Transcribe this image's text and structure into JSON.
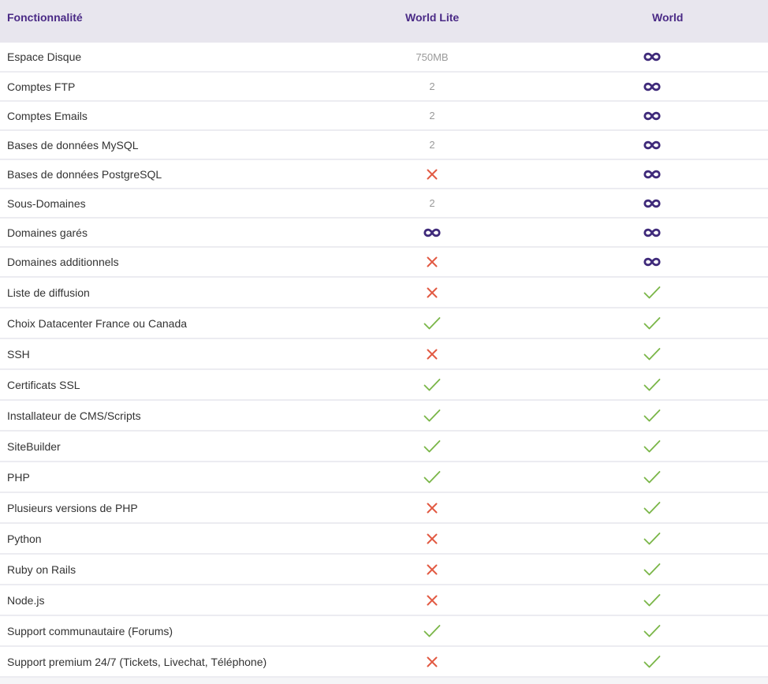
{
  "colors": {
    "header_bg": "#e8e6ee",
    "header_text": "#4a2a86",
    "infinity": "#3f2a7a",
    "check": "#7ab648",
    "cross": "#e25a43",
    "number_text": "#9a9a9a"
  },
  "header": {
    "feature": "Fonctionnalité",
    "lite": "World Lite",
    "world": "World"
  },
  "rows": [
    {
      "feature": "Espace Disque",
      "lite": {
        "type": "text",
        "text": "750MB"
      },
      "world": {
        "type": "icon",
        "icon": "infinity-icon"
      }
    },
    {
      "feature": "Comptes FTP",
      "lite": {
        "type": "text",
        "text": "2"
      },
      "world": {
        "type": "icon",
        "icon": "infinity-icon"
      }
    },
    {
      "feature": "Comptes Emails",
      "lite": {
        "type": "text",
        "text": "2"
      },
      "world": {
        "type": "icon",
        "icon": "infinity-icon"
      }
    },
    {
      "feature": "Bases de données MySQL",
      "lite": {
        "type": "text",
        "text": "2"
      },
      "world": {
        "type": "icon",
        "icon": "infinity-icon"
      }
    },
    {
      "feature": "Bases de données PostgreSQL",
      "lite": {
        "type": "icon",
        "icon": "cross-icon"
      },
      "world": {
        "type": "icon",
        "icon": "infinity-icon"
      }
    },
    {
      "feature": "Sous-Domaines",
      "lite": {
        "type": "text",
        "text": "2"
      },
      "world": {
        "type": "icon",
        "icon": "infinity-icon"
      }
    },
    {
      "feature": "Domaines garés",
      "lite": {
        "type": "icon",
        "icon": "infinity-icon"
      },
      "world": {
        "type": "icon",
        "icon": "infinity-icon"
      }
    },
    {
      "feature": "Domaines additionnels",
      "lite": {
        "type": "icon",
        "icon": "cross-icon"
      },
      "world": {
        "type": "icon",
        "icon": "infinity-icon"
      }
    },
    {
      "feature": "Liste de diffusion",
      "lite": {
        "type": "icon",
        "icon": "cross-icon"
      },
      "world": {
        "type": "icon",
        "icon": "check-icon"
      }
    },
    {
      "feature": "Choix Datacenter France ou Canada",
      "lite": {
        "type": "icon",
        "icon": "check-icon"
      },
      "world": {
        "type": "icon",
        "icon": "check-icon"
      }
    },
    {
      "feature": "SSH",
      "lite": {
        "type": "icon",
        "icon": "cross-icon"
      },
      "world": {
        "type": "icon",
        "icon": "check-icon"
      }
    },
    {
      "feature": "Certificats SSL",
      "lite": {
        "type": "icon",
        "icon": "check-icon"
      },
      "world": {
        "type": "icon",
        "icon": "check-icon"
      }
    },
    {
      "feature": "Installateur de CMS/Scripts",
      "lite": {
        "type": "icon",
        "icon": "check-icon"
      },
      "world": {
        "type": "icon",
        "icon": "check-icon"
      }
    },
    {
      "feature": "SiteBuilder",
      "lite": {
        "type": "icon",
        "icon": "check-icon"
      },
      "world": {
        "type": "icon",
        "icon": "check-icon"
      }
    },
    {
      "feature": "PHP",
      "lite": {
        "type": "icon",
        "icon": "check-icon"
      },
      "world": {
        "type": "icon",
        "icon": "check-icon"
      }
    },
    {
      "feature": "Plusieurs versions de PHP",
      "lite": {
        "type": "icon",
        "icon": "cross-icon"
      },
      "world": {
        "type": "icon",
        "icon": "check-icon"
      }
    },
    {
      "feature": "Python",
      "lite": {
        "type": "icon",
        "icon": "cross-icon"
      },
      "world": {
        "type": "icon",
        "icon": "check-icon"
      }
    },
    {
      "feature": "Ruby on Rails",
      "lite": {
        "type": "icon",
        "icon": "cross-icon"
      },
      "world": {
        "type": "icon",
        "icon": "check-icon"
      }
    },
    {
      "feature": "Node.js",
      "lite": {
        "type": "icon",
        "icon": "cross-icon"
      },
      "world": {
        "type": "icon",
        "icon": "check-icon"
      }
    },
    {
      "feature": "Support communautaire (Forums)",
      "lite": {
        "type": "icon",
        "icon": "check-icon"
      },
      "world": {
        "type": "icon",
        "icon": "check-icon"
      }
    },
    {
      "feature": "Support premium 24/7 (Tickets, Livechat, Téléphone)",
      "lite": {
        "type": "icon",
        "icon": "cross-icon"
      },
      "world": {
        "type": "icon",
        "icon": "check-icon"
      }
    }
  ]
}
